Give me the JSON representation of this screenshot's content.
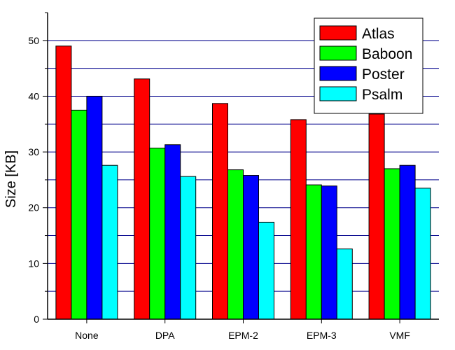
{
  "chart_data": {
    "type": "bar",
    "title": "",
    "xlabel": "",
    "ylabel": "Size [KB]",
    "ylim": [
      0,
      55
    ],
    "yticks": [
      0,
      10,
      20,
      30,
      40,
      50
    ],
    "grid": true,
    "legend_position": "top-right",
    "categories": [
      "None",
      "DPA",
      "EPM-2",
      "EPM-3",
      "VMF"
    ],
    "series": [
      {
        "name": "Atlas",
        "color": "#ff0000",
        "values": [
          49.0,
          43.1,
          38.7,
          35.8,
          36.8
        ]
      },
      {
        "name": "Baboon",
        "color": "#00ff00",
        "values": [
          37.5,
          30.7,
          26.8,
          24.1,
          27.0
        ]
      },
      {
        "name": "Poster",
        "color": "#0000ff",
        "values": [
          40.0,
          31.3,
          25.8,
          23.9,
          27.6
        ]
      },
      {
        "name": "Psalm",
        "color": "#00ffff",
        "values": [
          27.6,
          25.6,
          17.4,
          12.6,
          23.5
        ]
      }
    ],
    "colors": {
      "grid": "#00008b",
      "axis": "#000000",
      "background": "#ffffff"
    }
  }
}
